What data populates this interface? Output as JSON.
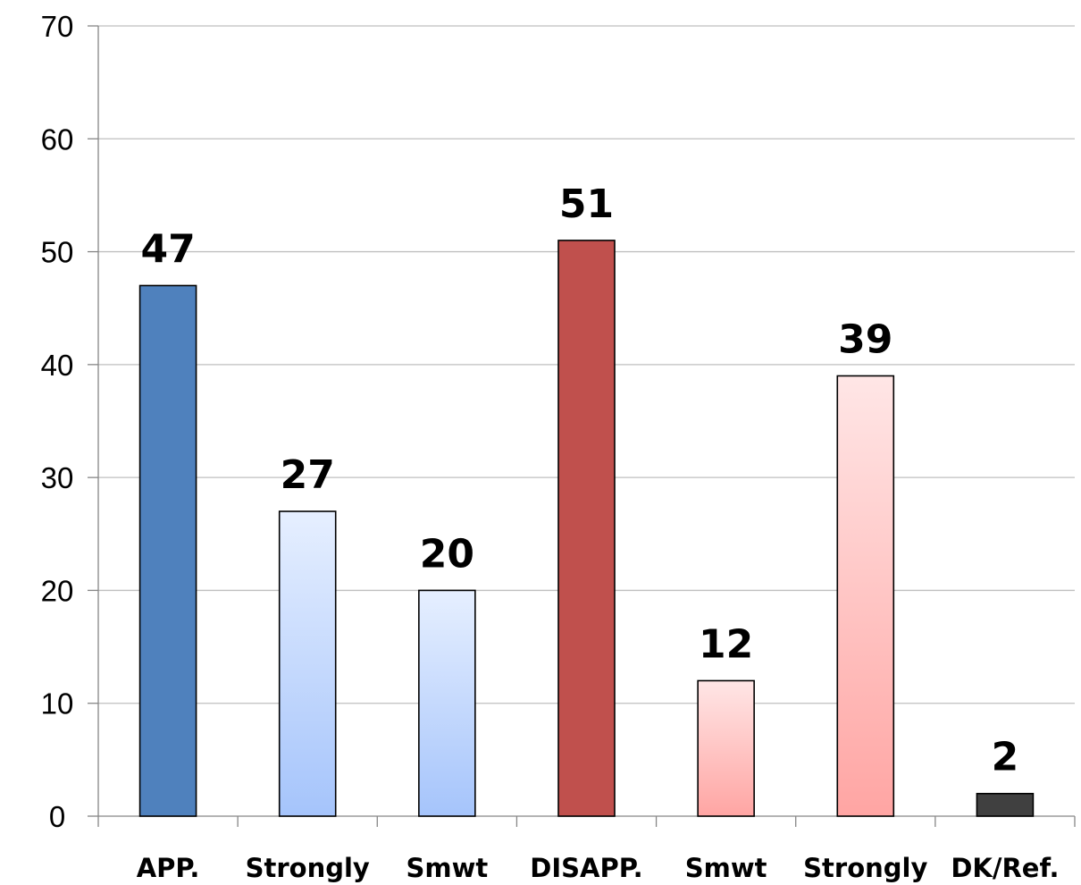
{
  "chart_data": {
    "type": "bar",
    "categories": [
      "APP.",
      "Strongly",
      "Smwt",
      "DISAPP.",
      "Smwt",
      "Strongly",
      "DK/Ref."
    ],
    "values": [
      47,
      27,
      20,
      51,
      12,
      39,
      2
    ],
    "data_labels": [
      "47",
      "27",
      "20",
      "51",
      "12",
      "39",
      "2"
    ],
    "y_ticks": [
      "0",
      "10",
      "20",
      "30",
      "40",
      "50",
      "60",
      "70"
    ],
    "ylim": [
      0,
      70
    ],
    "grid": true,
    "legend": "none",
    "bar_styles": [
      {
        "fill": "#4f81bd",
        "gradient": false
      },
      {
        "fill_top": "#e6efff",
        "fill_bottom": "#a5c4fb",
        "gradient": true
      },
      {
        "fill_top": "#e6efff",
        "fill_bottom": "#a5c4fb",
        "gradient": true
      },
      {
        "fill": "#c0504d",
        "gradient": false
      },
      {
        "fill_top": "#ffe6e6",
        "fill_bottom": "#ffa5a3",
        "gradient": true
      },
      {
        "fill_top": "#ffe6e6",
        "fill_bottom": "#ffa5a3",
        "gradient": true
      },
      {
        "fill": "#404040",
        "gradient": false
      }
    ],
    "colors": {
      "grid": "#bfbfbf",
      "axis": "#868686",
      "bar_outline": "#000000"
    }
  }
}
